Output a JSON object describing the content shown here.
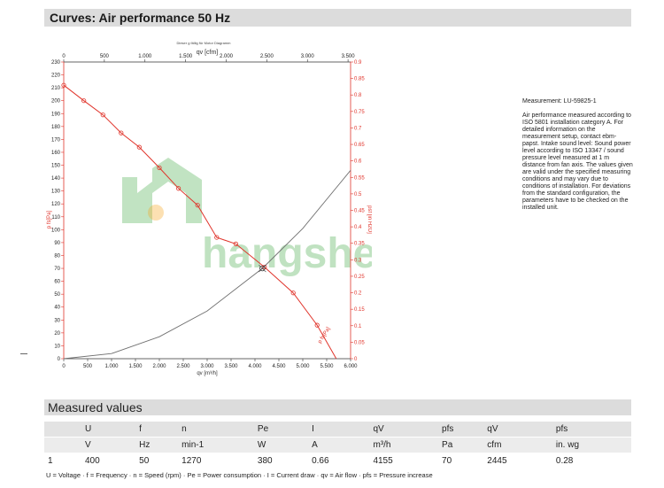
{
  "page_title": "Curves: Air performance 50 Hz",
  "chart": {
    "top_title": "Dieser g fällig für Motor Diagramm",
    "top_axis_label": "qv [cfm]",
    "bottom_axis_label": "qv [m³/h]",
    "left_axis_label": "p fs[Pa]",
    "right_axis_label": "psf [in H2O]",
    "curve_label": "p fs[Pa]",
    "watermark": "hangsheng",
    "colors": {
      "pressure_curve": "#e0342b",
      "system_curve": "#707070",
      "axis_red": "#e0342b",
      "watermark": "#4caf50"
    }
  },
  "chart_data": {
    "type": "line",
    "x_unit": "m³/h",
    "xlim": [
      0,
      6000
    ],
    "ylim": [
      0,
      230
    ],
    "y2lim": [
      0,
      0.9
    ],
    "x_ticks": [
      0,
      500,
      1000,
      1500,
      2000,
      2500,
      3000,
      3500,
      4000,
      4500,
      5000,
      5500,
      6000
    ],
    "x_tick_labels": [
      "0",
      "500",
      "1.000",
      "1.500",
      "2.000",
      "2.500",
      "3.000",
      "3.500",
      "4.000",
      "4.500",
      "5.000",
      "5.500",
      "6.000"
    ],
    "top_ticks_cfm": [
      0,
      500,
      1000,
      1500,
      2000,
      2500,
      3000,
      3500
    ],
    "top_tick_labels": [
      "0",
      "500",
      "1.000",
      "1.500",
      "2.000",
      "2.500",
      "3.000",
      "3.500"
    ],
    "y_ticks": [
      0,
      10,
      20,
      30,
      40,
      50,
      60,
      70,
      80,
      90,
      100,
      110,
      120,
      130,
      140,
      150,
      160,
      170,
      180,
      190,
      200,
      210,
      220,
      230
    ],
    "y2_ticks": [
      0,
      0.05,
      0.1,
      0.15,
      0.2,
      0.25,
      0.3,
      0.35,
      0.4,
      0.45,
      0.5,
      0.55,
      0.6,
      0.65,
      0.7,
      0.75,
      0.8,
      0.85,
      0.9
    ],
    "y2_tick_labels": [
      "0",
      "0.05",
      "0.1",
      "0.15",
      "0.2",
      "0.25",
      "0.3",
      "0.35",
      "0.4",
      "0.45",
      "0.5",
      "0.55",
      "0.6",
      "0.65",
      "0.7",
      "0.75",
      "0.8",
      "0.85",
      "0.9"
    ],
    "grid": false,
    "series": [
      {
        "name": "p fs[Pa]",
        "x": [
          0,
          420,
          820,
          1200,
          1580,
          2000,
          2400,
          2800,
          3200,
          3600,
          4200,
          4800,
          5300,
          5700
        ],
        "y": [
          212,
          200,
          189,
          175,
          164,
          148,
          132,
          119,
          94,
          89,
          71,
          51,
          26,
          0
        ],
        "markers": [
          0,
          420,
          820,
          1200,
          1580,
          2000,
          2400,
          2800,
          3200,
          3600,
          4200,
          4800,
          5300
        ]
      },
      {
        "name": "system",
        "x": [
          0,
          1000,
          2000,
          3000,
          4155,
          5000,
          6000
        ],
        "y": [
          0,
          4,
          17,
          37,
          70,
          101,
          146
        ]
      }
    ],
    "operating_point": {
      "x": 4155,
      "y": 70
    }
  },
  "side": {
    "measurement": "Measurement: LU-59825-1",
    "description": "Air performance measured according to ISO 5801 installation category A. For detailed information on the measurement setup, contact ebm-papst. Intake sound level: Sound power level according to ISO 13347 / sound pressure level measured at 1 m distance from fan axis. The values given are valid under the specified measuring conditions and may vary due to conditions of installation. For deviations from the standard configuration, the parameters have to be checked on the installed unit."
  },
  "measured": {
    "title": "Measured values",
    "headers": [
      "U",
      "f",
      "n",
      "Pe",
      "I",
      "qV",
      "pfs",
      "qV",
      "pfs"
    ],
    "units": [
      "V",
      "Hz",
      "min-1",
      "W",
      "A",
      "m³/h",
      "Pa",
      "cfm",
      "in. wg"
    ],
    "row_index": "1",
    "values": [
      "400",
      "50",
      "1270",
      "380",
      "0.66",
      "4155",
      "70",
      "2445",
      "0.28"
    ],
    "legend": "U = Voltage · f = Frequency · n = Speed (rpm) · Pe = Power consumption · I = Current draw · qv = Air flow · pfs = Pressure increase"
  }
}
